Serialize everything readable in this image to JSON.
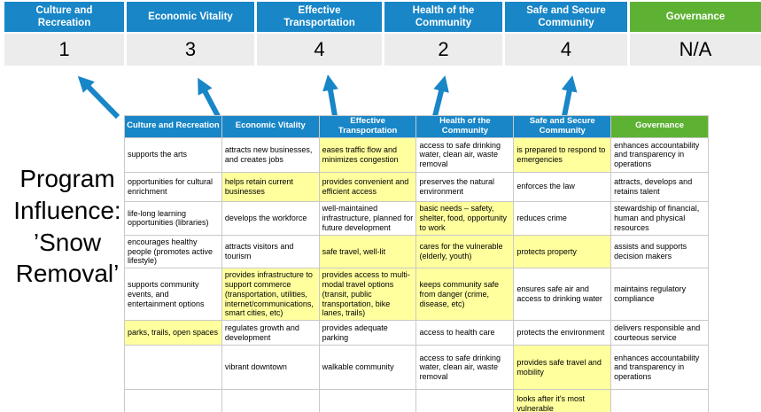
{
  "title": {
    "text": "Program Influence: ’Snow Removal’"
  },
  "colors": {
    "blue": "#1886C7",
    "green": "#5EB233",
    "yellow": "#FFFF9E",
    "score_bg": "#ECECEC",
    "border": "#C9C9C9"
  },
  "scoreboard": {
    "columns": [
      {
        "label": "Culture and Recreation",
        "score": "1",
        "theme": "blue"
      },
      {
        "label": "Economic Vitality",
        "score": "3",
        "theme": "blue"
      },
      {
        "label": "Effective Transportation",
        "score": "4",
        "theme": "blue"
      },
      {
        "label": "Health of the Community",
        "score": "2",
        "theme": "blue"
      },
      {
        "label": "Safe and Secure Community",
        "score": "4",
        "theme": "blue"
      },
      {
        "label": "Governance",
        "score": "N/A",
        "theme": "green"
      }
    ]
  },
  "matrix": {
    "headers": [
      {
        "label": "Culture and Recreation",
        "theme": "blue"
      },
      {
        "label": "Economic Vitality",
        "theme": "blue"
      },
      {
        "label": "Effective Transportation",
        "theme": "blue"
      },
      {
        "label": "Health of the Community",
        "theme": "blue"
      },
      {
        "label": "Safe and Secure Community",
        "theme": "blue"
      },
      {
        "label": "Governance",
        "theme": "green"
      }
    ],
    "rows": [
      [
        {
          "text": "supports the arts",
          "highlight": false
        },
        {
          "text": "attracts new businesses, and creates jobs",
          "highlight": false
        },
        {
          "text": "eases traffic flow and minimizes congestion",
          "highlight": true
        },
        {
          "text": "access to safe drinking water, clean air, waste removal",
          "highlight": false
        },
        {
          "text": "is prepared to respond to emergencies",
          "highlight": true
        },
        {
          "text": "enhances accountability and transparency in operations",
          "highlight": false
        }
      ],
      [
        {
          "text": "opportunities for cultural enrichment",
          "highlight": false
        },
        {
          "text": "helps retain current businesses",
          "highlight": true
        },
        {
          "text": "provides convenient and efficient access",
          "highlight": true
        },
        {
          "text": "preserves the natural environment",
          "highlight": false
        },
        {
          "text": "enforces the law",
          "highlight": false
        },
        {
          "text": "attracts, develops and retains talent",
          "highlight": false
        }
      ],
      [
        {
          "text": "life-long learning opportunities (libraries)",
          "highlight": false
        },
        {
          "text": "develops the workforce",
          "highlight": false
        },
        {
          "text": "well-maintained infrastructure, planned for future development",
          "highlight": false
        },
        {
          "text": "basic needs – safety, shelter, food, opportunity to work",
          "highlight": true
        },
        {
          "text": "reduces crime",
          "highlight": false
        },
        {
          "text": "stewardship of financial, human and physical resources",
          "highlight": false
        }
      ],
      [
        {
          "text": "encourages healthy people (promotes active lifestyle)",
          "highlight": false
        },
        {
          "text": "attracts visitors and tourism",
          "highlight": false
        },
        {
          "text": "safe travel, well-lit",
          "highlight": true
        },
        {
          "text": "cares for the vulnerable (elderly, youth)",
          "highlight": true
        },
        {
          "text": "protects property",
          "highlight": true
        },
        {
          "text": "assists and supports decision makers",
          "highlight": false
        }
      ],
      [
        {
          "text": "supports community events, and entertainment options",
          "highlight": false
        },
        {
          "text": "provides infrastructure to support commerce (transportation, utilities, internet/communications, smart cities, etc)",
          "highlight": true
        },
        {
          "text": "provides access to multi-modal travel options (transit, public transportation, bike lanes, trails)",
          "highlight": true
        },
        {
          "text": "keeps community safe from danger (crime, disease, etc)",
          "highlight": true
        },
        {
          "text": "ensures safe air and access to drinking water",
          "highlight": false
        },
        {
          "text": "maintains regulatory compliance",
          "highlight": false
        }
      ],
      [
        {
          "text": "parks, trails, open spaces",
          "highlight": true
        },
        {
          "text": "regulates growth and development",
          "highlight": false
        },
        {
          "text": "provides adequate parking",
          "highlight": false
        },
        {
          "text": "access to health care",
          "highlight": false
        },
        {
          "text": "protects the environment",
          "highlight": false
        },
        {
          "text": "delivers responsible and courteous service",
          "highlight": false
        }
      ],
      [
        {
          "text": "",
          "highlight": false
        },
        {
          "text": "vibrant downtown",
          "highlight": false
        },
        {
          "text": "walkable community",
          "highlight": false
        },
        {
          "text": "access to safe drinking water, clean air, waste removal",
          "highlight": false
        },
        {
          "text": "provides safe travel and mobility",
          "highlight": true
        },
        {
          "text": "enhances accountability and transparency in operations",
          "highlight": false
        }
      ],
      [
        {
          "text": "",
          "highlight": false
        },
        {
          "text": "",
          "highlight": false
        },
        {
          "text": "",
          "highlight": false
        },
        {
          "text": "",
          "highlight": false
        },
        {
          "text": "looks after it's most vulnerable",
          "highlight": true
        },
        {
          "text": "",
          "highlight": false
        }
      ]
    ]
  }
}
